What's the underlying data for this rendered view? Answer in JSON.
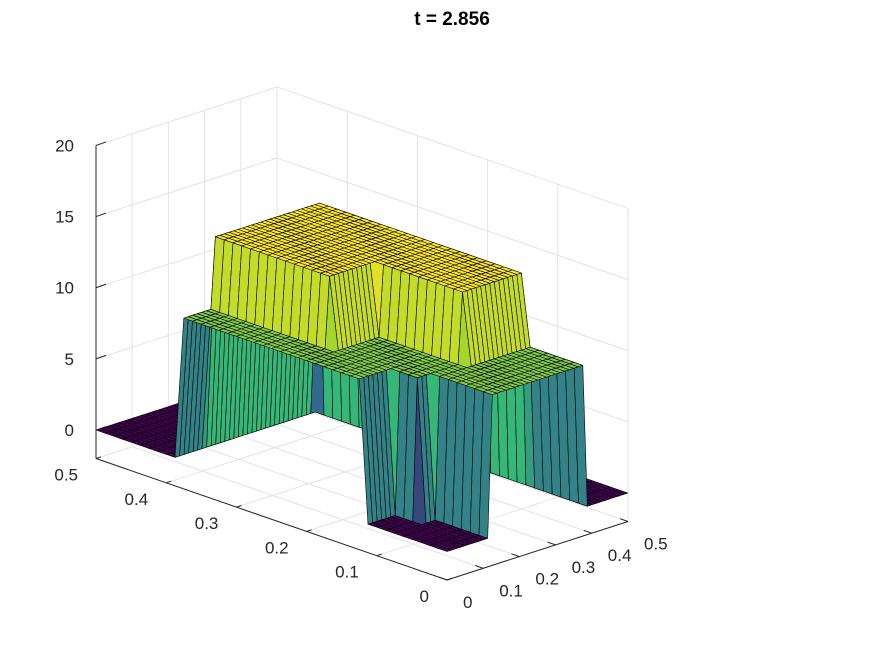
{
  "chart_data": {
    "type": "surface",
    "title": "t = 2.856",
    "xlabel": "",
    "ylabel": "",
    "zlabel": "",
    "grid": true,
    "view": "3d-isometric",
    "x_range": [
      0,
      0.5
    ],
    "y_range": [
      0,
      0.5
    ],
    "z_range": [
      -2,
      20
    ],
    "x_ticks": [
      "0",
      "0.1",
      "0.2",
      "0.3",
      "0.4",
      "0.5"
    ],
    "y_ticks": [
      "0",
      "0.1",
      "0.2",
      "0.3",
      "0.4",
      "0.5"
    ],
    "z_ticks": [
      "0",
      "5",
      "10",
      "15",
      "20"
    ],
    "x_tick_values": [
      0,
      0.1,
      0.2,
      0.3,
      0.4,
      0.5
    ],
    "y_tick_values": [
      0,
      0.1,
      0.2,
      0.3,
      0.4,
      0.5
    ],
    "z_tick_values": [
      0,
      5,
      10,
      15,
      20
    ],
    "grid_points": 41,
    "regions": [
      {
        "x": [
          0,
          0.25
        ],
        "y": [
          0,
          0.25
        ],
        "z": 0
      },
      {
        "x": [
          0,
          0.25
        ],
        "y": [
          0.25,
          0.5
        ],
        "z": 0
      },
      {
        "x": [
          0.25,
          0.5
        ],
        "y": [
          0,
          0.25
        ],
        "z": 0
      },
      {
        "x": [
          0.25,
          0.5
        ],
        "y": [
          0.25,
          0.5
        ],
        "z": 0
      },
      {
        "x": [
          0,
          0.08
        ],
        "y": [
          0.12,
          0.38
        ],
        "z": 10
      },
      {
        "x": [
          0.12,
          0.38
        ],
        "y": [
          0,
          0.08
        ],
        "z": 10
      },
      {
        "x": [
          0.08,
          0.38
        ],
        "y": [
          0.08,
          0.38
        ],
        "z": 15
      },
      {
        "x": [
          0.08,
          0.2
        ],
        "y": [
          0.08,
          0.2
        ],
        "z": 10
      }
    ],
    "colormap": [
      "#440154",
      "#31688e",
      "#35b779",
      "#a6d62e",
      "#fde725"
    ]
  }
}
